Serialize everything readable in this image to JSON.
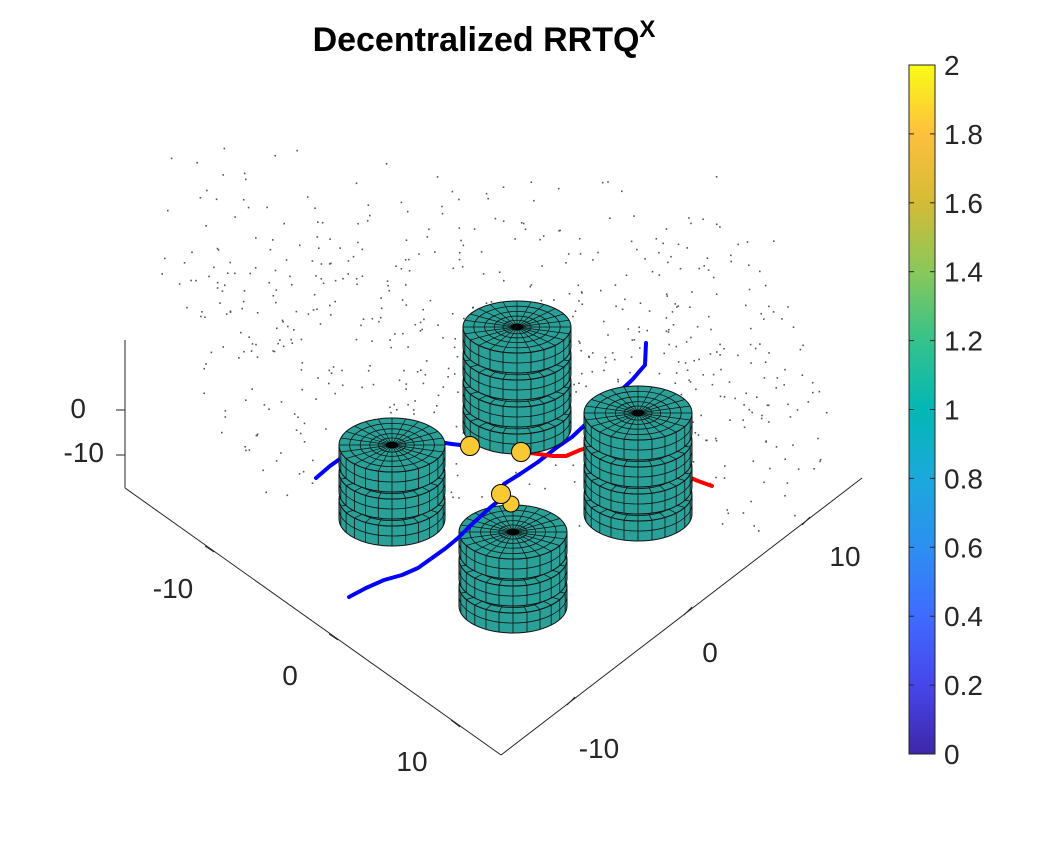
{
  "chart_data": {
    "type": "3d-scatter-surface",
    "title": {
      "main": "Decentralized RRTQ",
      "superscript": "X"
    },
    "axes": {
      "x": {
        "ticks": [
          -10,
          0,
          10
        ],
        "tick_labels": [
          "-10",
          "0",
          "10"
        ]
      },
      "y": {
        "ticks": [
          -10,
          0,
          10
        ],
        "tick_labels": [
          "-10",
          "0",
          "10"
        ]
      },
      "z": {
        "ticks": [
          -10,
          0
        ],
        "tick_labels": [
          "-10",
          "0"
        ]
      }
    },
    "colorbar": {
      "min": 0,
      "max": 2,
      "tick_labels": [
        "0",
        "0.2",
        "0.4",
        "0.6",
        "0.8",
        "1",
        "1.2",
        "1.4",
        "1.6",
        "1.8",
        "2"
      ],
      "colormap": "parula",
      "stops": [
        "#3e26a8",
        "#4746eb",
        "#3f6bff",
        "#2d8ff1",
        "#1ba9dc",
        "#03b7b4",
        "#35c28b",
        "#89c85b",
        "#d4bb36",
        "#fdc03d",
        "#f9fb15"
      ]
    },
    "obstacles": [
      {
        "name": "obstacle-back",
        "stack_count": 4,
        "color_value": 1.0
      },
      {
        "name": "obstacle-left",
        "stack_count": 3,
        "color_value": 1.0
      },
      {
        "name": "obstacle-right",
        "stack_count": 4,
        "color_value": 1.0
      },
      {
        "name": "obstacle-front",
        "stack_count": 3,
        "color_value": 1.0
      }
    ],
    "paths": [
      {
        "name": "path-blue-left",
        "color": "#0000ff"
      },
      {
        "name": "path-blue-diagonal",
        "color": "#0000ff"
      },
      {
        "name": "path-blue-front",
        "color": "#0000ff"
      },
      {
        "name": "path-red",
        "color": "#ff0000"
      }
    ],
    "agents": [
      {
        "name": "agent-1",
        "color": "#f9c933"
      },
      {
        "name": "agent-2",
        "color": "#f9c933"
      },
      {
        "name": "agent-3",
        "color": "#f9c933"
      },
      {
        "name": "agent-4",
        "color": "#f9c933"
      }
    ],
    "sample_points": {
      "description_count": 650,
      "color": "#555555"
    },
    "surface_color": "#2aa198",
    "edge_color": "#111111"
  }
}
